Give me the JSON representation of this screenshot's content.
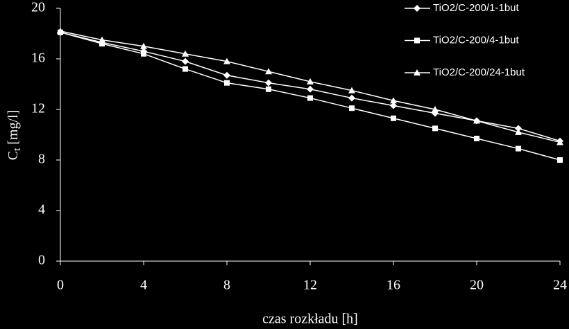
{
  "chart_data": {
    "type": "line",
    "ylabel": [
      "C",
      "t",
      " [mg/l]"
    ],
    "xlabel": "czas rozkładu [h]",
    "x": [
      0,
      2,
      4,
      6,
      8,
      10,
      12,
      14,
      16,
      18,
      20,
      22,
      24
    ],
    "series": [
      {
        "name": "TiO2/C-200/1-1but",
        "color": "#ffffff",
        "marker": "diamond",
        "values": [
          18.1,
          17.3,
          16.6,
          15.8,
          14.7,
          14.1,
          13.6,
          12.9,
          12.3,
          11.7,
          11.1,
          10.5,
          9.5
        ]
      },
      {
        "name": "TiO2/C-200/4-1but",
        "color": "#ffffff",
        "marker": "square",
        "values": [
          18.1,
          17.2,
          16.4,
          15.2,
          14.1,
          13.6,
          12.9,
          12.1,
          11.3,
          10.5,
          9.7,
          8.9,
          8.0
        ]
      },
      {
        "name": "TiO2/C-200/24-1but",
        "color": "#ffffff",
        "marker": "triangle",
        "values": [
          18.2,
          17.5,
          17.0,
          16.4,
          15.8,
          15.0,
          14.2,
          13.5,
          12.7,
          12.0,
          11.1,
          10.2,
          9.4
        ]
      }
    ],
    "xlim": [
      0,
      24
    ],
    "xticks": [
      0,
      4,
      8,
      12,
      16,
      20,
      24
    ],
    "ylim": [
      0,
      20
    ],
    "yticks": [
      0,
      4,
      8,
      12,
      16,
      20
    ],
    "legend": "top-right"
  }
}
